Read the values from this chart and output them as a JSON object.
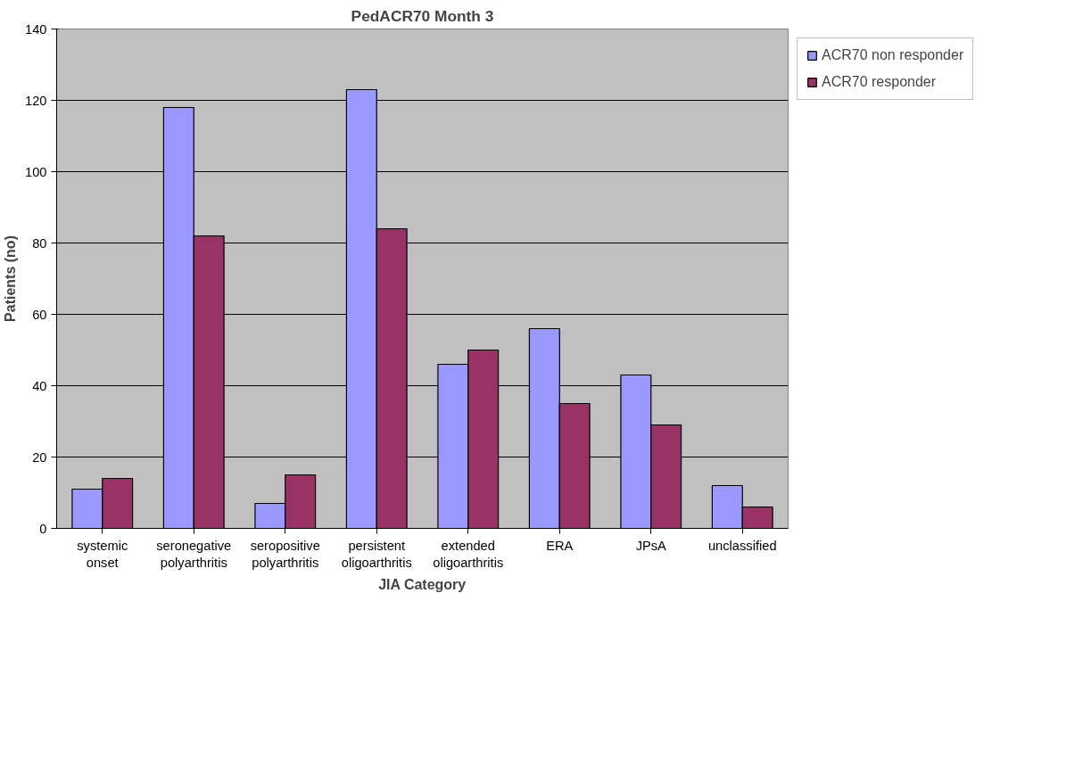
{
  "chart_data": {
    "type": "bar",
    "title": "PedACR70 Month 3",
    "xlabel": "JIA Category",
    "ylabel": "Patients (no)",
    "categories": [
      "systemic onset",
      "seronegative polyarthritis",
      "seropositive polyarthritis",
      "persistent oligoarthritis",
      "extended oligoarthritis",
      "ERA",
      "JPsA",
      "unclassified"
    ],
    "series": [
      {
        "name": "ACR70 non responder",
        "color": "#9999ff",
        "values": [
          11,
          118,
          7,
          123,
          46,
          56,
          43,
          12
        ]
      },
      {
        "name": "ACR70 responder",
        "color": "#993366",
        "values": [
          14,
          82,
          15,
          84,
          50,
          35,
          29,
          6
        ]
      }
    ],
    "ylim": [
      0,
      140
    ],
    "yticks": [
      0,
      20,
      40,
      60,
      80,
      100,
      120,
      140
    ],
    "grid": "y",
    "legend": "top right"
  }
}
